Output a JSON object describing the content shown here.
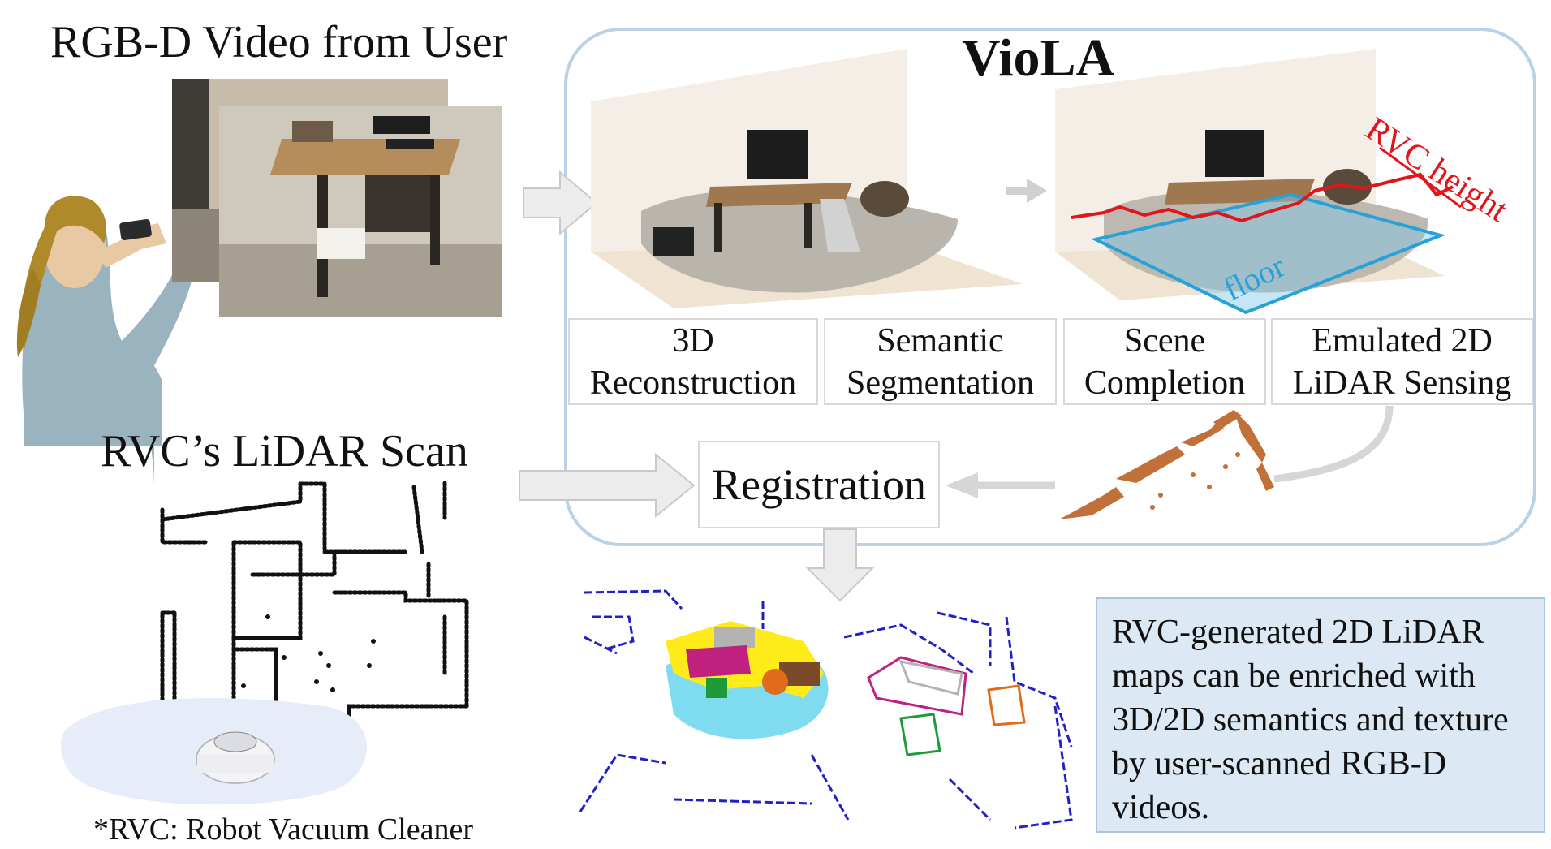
{
  "labels": {
    "rgbd_video": "RGB-D Video from User",
    "lidar_scan": "RVC’s LiDAR Scan",
    "footnote": "*RVC: Robot Vacuum Cleaner",
    "viola": "VioLA",
    "registration": "Registration",
    "rvc_height": "RVC height",
    "floor": "floor"
  },
  "stages": [
    {
      "line1": "3D",
      "line2": "Reconstruction"
    },
    {
      "line1": "Semantic",
      "line2": "Segmentation"
    },
    {
      "line1": "Scene",
      "line2": "Completion"
    },
    {
      "line1": "Emulated 2D",
      "line2": "LiDAR Sensing"
    }
  ],
  "note_text": "RVC-generated 2D LiDAR maps can be enriched with 3D/2D semantics and texture by user-scanned RGB-D videos.",
  "colors": {
    "panel_border": "#b9d2e8",
    "arrow_gray": "#d6d6d6",
    "rvc_height_red": "#e0161b",
    "floor_blue": "#2aa1d6",
    "lidar_orange": "#c2703a",
    "map_blue": "#2020c8",
    "note_bg": "#dce9f4"
  }
}
